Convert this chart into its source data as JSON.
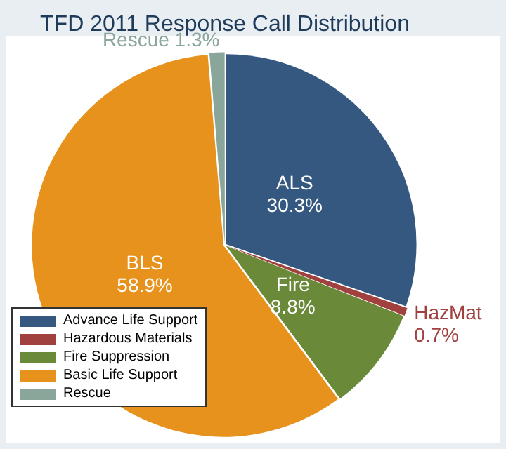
{
  "chart_data": {
    "type": "pie",
    "title": "TFD 2011 Response Call Distribution",
    "categories": [
      "Advance Life Support",
      "Hazardous Materials",
      "Fire Suppression",
      "Basic Life Support",
      "Rescue"
    ],
    "values": [
      30.3,
      0.7,
      8.8,
      58.9,
      1.3
    ],
    "colors": [
      "#34587f",
      "#a0403f",
      "#6a8a3a",
      "#e8921e",
      "#8aa59a"
    ],
    "value_labels": [
      "ALS\n30.3%",
      "HazMat\n0.7%",
      "Fire\n8.8%",
      "BLS\n58.9%",
      "Rescue 1.3%"
    ],
    "legend": "bottom left"
  }
}
